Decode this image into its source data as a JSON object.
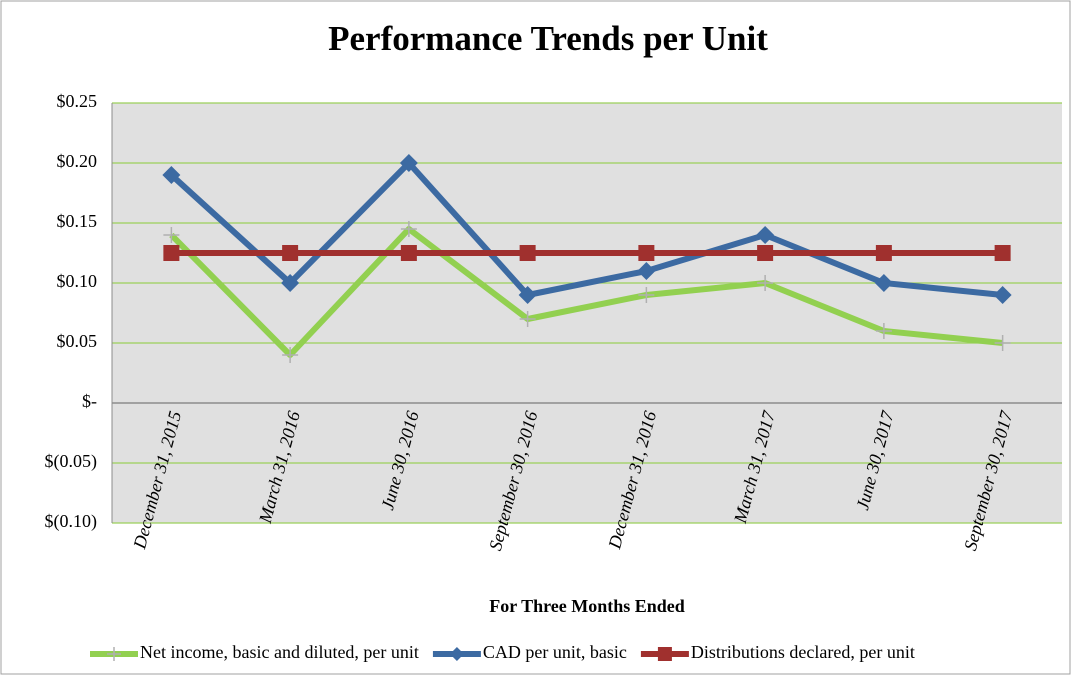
{
  "chart_data": {
    "type": "line",
    "title": "Performance Trends per Unit",
    "x_label": "For Three Months Ended",
    "categories": [
      "December 31, 2015",
      "March 31, 2016",
      "June 30, 2016",
      "September 30, 2016",
      "December 31, 2016",
      "March 31, 2017",
      "June 30, 2017",
      "September 30, 2017"
    ],
    "series": [
      {
        "name": "Net income, basic and diluted, per unit",
        "color": "#92d050",
        "marker": "plus",
        "values": [
          0.14,
          0.04,
          0.145,
          0.07,
          0.09,
          0.1,
          0.06,
          0.05
        ]
      },
      {
        "name": "CAD per unit, basic",
        "color": "#3c6aa2",
        "marker": "diamond",
        "values": [
          0.19,
          0.1,
          0.2,
          0.09,
          0.11,
          0.14,
          0.1,
          0.09
        ]
      },
      {
        "name": "Distributions declared, per unit",
        "color": "#a0302e",
        "marker": "square",
        "values": [
          0.125,
          0.125,
          0.125,
          0.125,
          0.125,
          0.125,
          0.125,
          0.125
        ]
      }
    ],
    "ylim": [
      -0.1,
      0.25
    ],
    "yticks": [
      {
        "value": -0.1,
        "label": "$(0.10)"
      },
      {
        "value": -0.05,
        "label": "$(0.05)"
      },
      {
        "value": 0,
        "label": "$-"
      },
      {
        "value": 0.05,
        "label": "$0.05"
      },
      {
        "value": 0.1,
        "label": "$0.10"
      },
      {
        "value": 0.15,
        "label": "$0.15"
      },
      {
        "value": 0.2,
        "label": "$0.20"
      },
      {
        "value": 0.25,
        "label": "$0.25"
      }
    ],
    "grid": true,
    "legend": "bottom"
  }
}
